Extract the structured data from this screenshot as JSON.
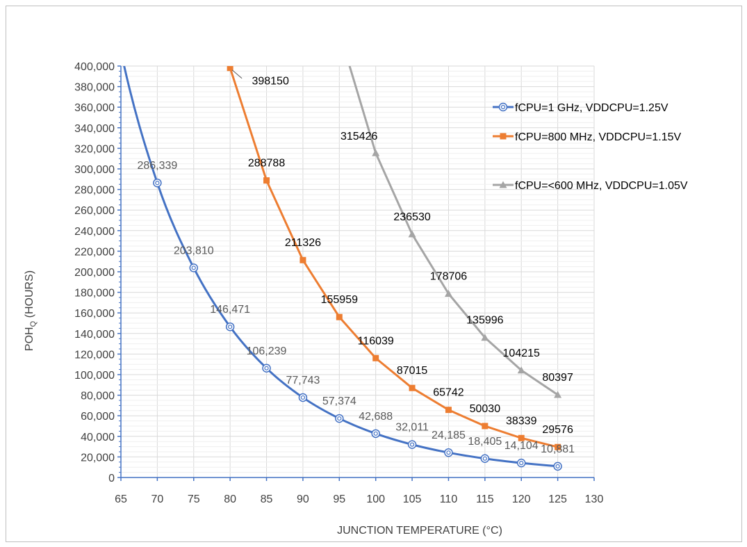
{
  "chart_data": {
    "type": "line",
    "title": "",
    "xlabel": "JUNCTION TEMPERATURE (°C)",
    "ylabel_main": "POH",
    "ylabel_sub": "Q",
    "ylabel_suffix": " (HOURS)",
    "xlim": [
      65,
      130
    ],
    "ylim": [
      0,
      400000
    ],
    "x_ticks": [
      65,
      70,
      75,
      80,
      85,
      90,
      95,
      100,
      105,
      110,
      115,
      120,
      125,
      130
    ],
    "x_tick_labels": [
      "65",
      "70",
      "75",
      "80",
      "85",
      "90",
      "95",
      "100",
      "105",
      "110",
      "115",
      "120",
      "125",
      "130"
    ],
    "y_ticks": [
      0,
      20000,
      40000,
      60000,
      80000,
      100000,
      120000,
      140000,
      160000,
      180000,
      200000,
      220000,
      240000,
      260000,
      280000,
      300000,
      320000,
      340000,
      360000,
      380000,
      400000
    ],
    "y_tick_labels": [
      "0",
      "20,000",
      "40,000",
      "60,000",
      "80,000",
      "100,000",
      "120,000",
      "140,000",
      "160,000",
      "180,000",
      "200,000",
      "220,000",
      "240,000",
      "260,000",
      "280,000",
      "300,000",
      "320,000",
      "340,000",
      "360,000",
      "380,000",
      "400,000"
    ],
    "grid": true,
    "legend_position": "right",
    "series": [
      {
        "name": "fCPU=1 GHz, VDDCPU=1.25V",
        "color": "#4472c4",
        "marker": "circle",
        "x": [
          70,
          75,
          80,
          85,
          90,
          95,
          100,
          105,
          110,
          115,
          120,
          125
        ],
        "y": [
          286339,
          203810,
          146471,
          106239,
          77743,
          57374,
          42688,
          32011,
          24185,
          18405,
          14104,
          10881
        ],
        "labels": [
          "286,339",
          "203,810",
          "146,471",
          "106,239",
          "77,743",
          "57,374",
          "42,688",
          "32,011",
          "24,185",
          "18,405",
          "14,104",
          "10,881"
        ]
      },
      {
        "name": "fCPU=800 MHz, VDDCPU=1.15V",
        "color": "#ed7d31",
        "marker": "square",
        "x": [
          80,
          85,
          90,
          95,
          100,
          105,
          110,
          115,
          120,
          125
        ],
        "y": [
          398150,
          288788,
          211326,
          155959,
          116039,
          87015,
          65742,
          50030,
          38339,
          29576
        ],
        "labels": [
          "398150",
          "288788",
          "211326",
          "155959",
          "116039",
          "87015",
          "65742",
          "50030",
          "38339",
          "29576"
        ]
      },
      {
        "name": "fCPU=<600 MHz, VDDCPU=1.05V",
        "color": "#a5a5a5",
        "marker": "triangle",
        "x": [
          100,
          105,
          110,
          115,
          120,
          125
        ],
        "y": [
          315426,
          236530,
          178706,
          135996,
          104215,
          80397
        ],
        "labels": [
          "315426",
          "236530",
          "178706",
          "135996",
          "104215",
          "80397"
        ]
      }
    ]
  }
}
